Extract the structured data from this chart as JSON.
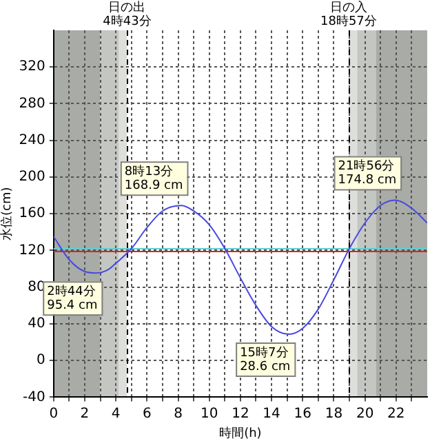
{
  "chart_data": {
    "type": "line",
    "xlabel": "時間(h)",
    "ylabel": "水位(cm)",
    "xlim": [
      0,
      24
    ],
    "ylim": [
      -40,
      360
    ],
    "xticks": [
      0,
      {
        "value": 1,
        "label": null
      },
      2,
      {
        "value": 3,
        "label": null
      },
      4,
      {
        "value": 5,
        "label": null
      },
      6,
      {
        "value": 7,
        "label": null
      },
      8,
      {
        "value": 9,
        "label": null
      },
      10,
      {
        "value": 11,
        "label": null
      },
      12,
      {
        "value": 13,
        "label": null
      },
      14,
      {
        "value": 15,
        "label": null
      },
      16,
      {
        "value": 17,
        "label": null
      },
      18,
      {
        "value": 19,
        "label": null
      },
      20,
      {
        "value": 21,
        "label": null
      },
      22,
      {
        "value": 23,
        "label": null
      }
    ],
    "yticks": [
      -40,
      0,
      40,
      80,
      120,
      160,
      200,
      240,
      280,
      320
    ],
    "grid": true,
    "legend": false,
    "marker": "none",
    "line_style": "solid",
    "series": [
      {
        "color": "#4848e0",
        "x": [
          0,
          1,
          2,
          2.73,
          3.5,
          4,
          5,
          6,
          7,
          8.22,
          9,
          10,
          11,
          12,
          13,
          14,
          15.12,
          16,
          17,
          18,
          19,
          20,
          21,
          21.93,
          23,
          24
        ],
        "values": [
          135,
          110,
          97,
          95.4,
          99,
          106,
          122,
          145,
          163,
          168.9,
          163,
          148,
          122,
          90,
          60,
          37,
          28.6,
          35,
          56,
          88,
          122,
          150,
          169,
          174.8,
          166,
          150
        ]
      }
    ],
    "bands": [
      {
        "axis": "x",
        "from": 0,
        "to": 3,
        "color": "#a8aba6"
      },
      {
        "axis": "x",
        "from": 3,
        "to": 4.2,
        "color": "#c4c6c2"
      },
      {
        "axis": "x",
        "from": 4.2,
        "to": 4.72,
        "color": "#dedfdc"
      },
      {
        "axis": "x",
        "from": 18.95,
        "to": 19.5,
        "color": "#dedfdc"
      },
      {
        "axis": "x",
        "from": 19.5,
        "to": 20.7,
        "color": "#c4c6c2"
      },
      {
        "axis": "x",
        "from": 20.7,
        "to": 24,
        "color": "#a8aba6"
      }
    ],
    "ref_lines": [
      {
        "axis": "y",
        "value": 122,
        "color": "#60d0d0"
      },
      {
        "axis": "y",
        "value": 120,
        "color": "#e02020"
      },
      {
        "axis": "x",
        "value": 4.72,
        "label": "日の出\n4時43分",
        "color": "#000000",
        "line_style": "dashed"
      },
      {
        "axis": "x",
        "value": 18.95,
        "label": "日の入\n18時57分",
        "color": "#000000",
        "line_style": "dashed"
      }
    ],
    "annotations": [
      {
        "text": "2時44分\n95.4 cm",
        "x": 2.73,
        "y": 95.4
      },
      {
        "text": "8時13分\n168.9 cm",
        "x": 8.22,
        "y": 168.9
      },
      {
        "text": "15時7分\n28.6 cm",
        "x": 15.12,
        "y": 28.6
      },
      {
        "text": "21時56分\n174.8 cm",
        "x": 21.93,
        "y": 174.8
      }
    ]
  }
}
